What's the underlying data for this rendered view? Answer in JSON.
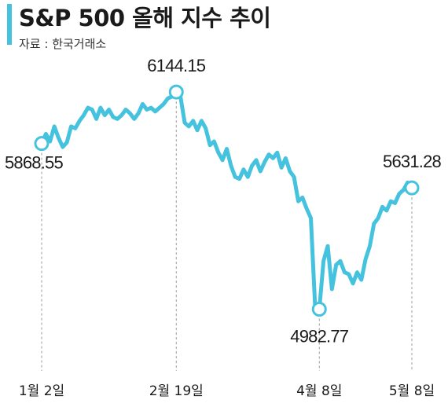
{
  "title": "S&P 500 올해 지수 추이",
  "source": "자료 : 한국거래소",
  "accent_color": "#45c3de",
  "chart_data": {
    "type": "line",
    "title": "S&P 500 올해 지수 추이",
    "xlabel": "",
    "ylabel": "",
    "ylim": [
      4800,
      6300
    ],
    "grid": false,
    "legend": "none",
    "x_ticks": [
      {
        "label": "1월 2일",
        "index": 0
      },
      {
        "label": "2월 19일",
        "index": 32
      },
      {
        "label": "4월 8일",
        "index": 66
      },
      {
        "label": "5월 8일",
        "index": 88
      }
    ],
    "series": [
      {
        "values": [
          5868.55,
          5920,
          5880,
          5960,
          5900,
          5850,
          5875,
          5960,
          5950,
          5990,
          6020,
          6060,
          6050,
          6000,
          6060,
          6020,
          6050,
          6010,
          6000,
          6020,
          6050,
          6030,
          6000,
          6030,
          6080,
          6050,
          6060,
          6040,
          6060,
          6080,
          6110,
          6120,
          6144.15,
          6120,
          5980,
          5960,
          5990,
          5940,
          5990,
          5950,
          5860,
          5880,
          5820,
          5780,
          5840,
          5750,
          5690,
          5680,
          5730,
          5690,
          5750,
          5780,
          5720,
          5770,
          5810,
          5790,
          5820,
          5740,
          5790,
          5720,
          5690,
          5560,
          5580,
          5520,
          5470,
          5000,
          4982.77,
          5240,
          5320,
          5090,
          5220,
          5240,
          5180,
          5170,
          5120,
          5180,
          5140,
          5250,
          5320,
          5440,
          5470,
          5530,
          5510,
          5560,
          5550,
          5600,
          5620,
          5660,
          5631.28
        ]
      }
    ],
    "annotations": [
      {
        "label": "5868.55",
        "index": 0,
        "value": 5868.55
      },
      {
        "label": "6144.15",
        "index": 32,
        "value": 6144.15
      },
      {
        "label": "4982.77",
        "index": 66,
        "value": 4982.77
      },
      {
        "label": "5631.28",
        "index": 88,
        "value": 5631.28
      }
    ]
  }
}
